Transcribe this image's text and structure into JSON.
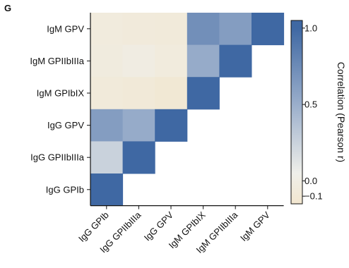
{
  "panel_label": "G",
  "chart_data": {
    "type": "heatmap",
    "rows": [
      "IgM GPV",
      "IgM GPIIbIIIa",
      "IgM GPIbIX",
      "IgG GPV",
      "IgG GPIIbIIIa",
      "IgG GPIb"
    ],
    "columns": [
      "IgG GPIb",
      "IgG GPIIbIIIa",
      "IgG GPV",
      "IgM GPIbIX",
      "IgM GPIIbIIIa",
      "IgM GPV"
    ],
    "values": [
      [
        -0.05,
        -0.06,
        -0.07,
        0.72,
        0.62,
        1.0
      ],
      [
        -0.04,
        -0.01,
        -0.05,
        0.52,
        1.0,
        null
      ],
      [
        -0.07,
        -0.08,
        -0.11,
        1.0,
        null,
        null
      ],
      [
        0.62,
        0.52,
        1.0,
        null,
        null,
        null
      ],
      [
        0.25,
        1.0,
        null,
        null,
        null,
        null
      ],
      [
        1.0,
        null,
        null,
        null,
        null,
        null
      ]
    ],
    "colorbar": {
      "title": "Correlation (Pearson r)",
      "min": -0.15,
      "max": 1.05,
      "ticks": [
        1.0,
        0.5,
        0.0,
        -0.1
      ],
      "tick_labels": [
        "1.0",
        "0.5",
        "0.0",
        "−0.1"
      ],
      "stops": [
        {
          "value": -0.15,
          "color": "#f2e6cf"
        },
        {
          "value": 0.05,
          "color": "#efefea"
        },
        {
          "value": 0.5,
          "color": "#9aaecb"
        },
        {
          "value": 1.0,
          "color": "#3f68a3"
        }
      ]
    }
  }
}
